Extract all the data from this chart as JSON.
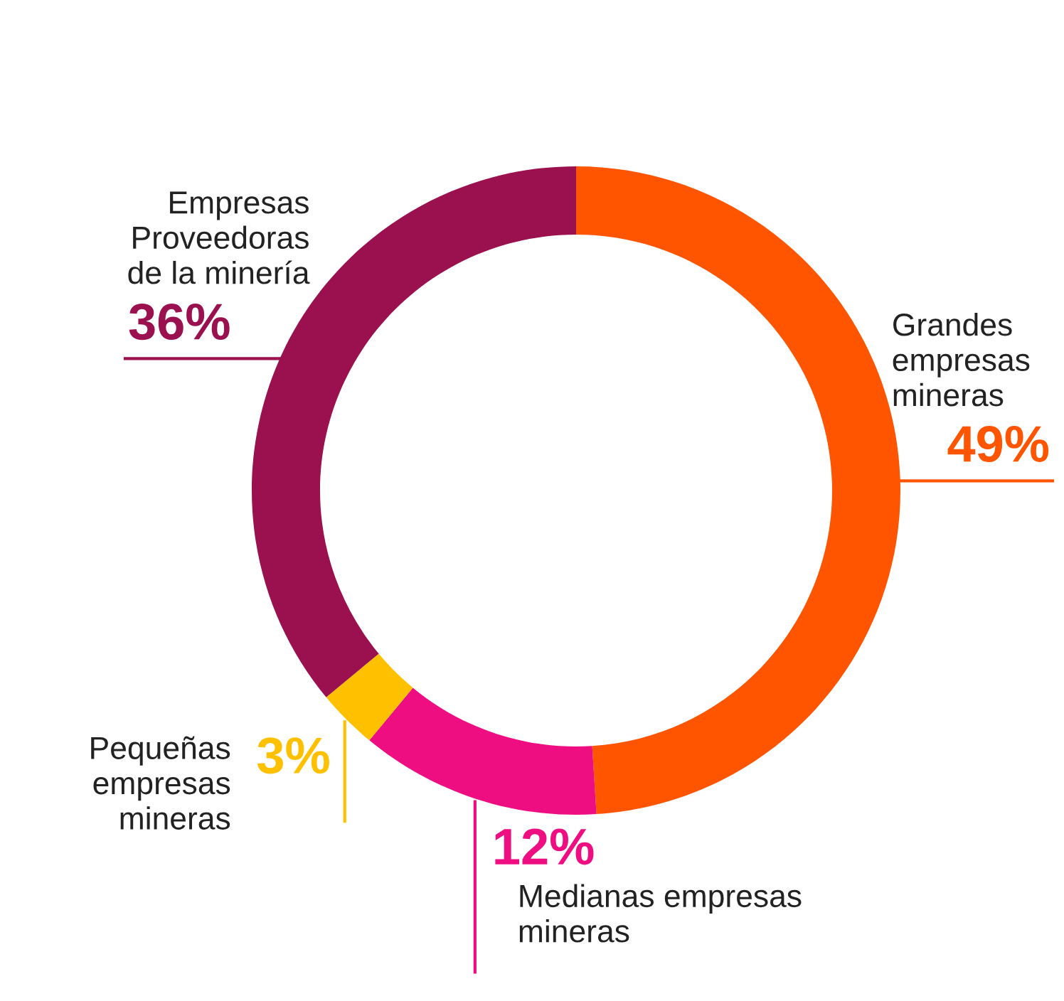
{
  "chart_data": {
    "type": "donut",
    "categories": [
      "Grandes\nempresas\nmineras",
      "Medianas empresas\nmineras",
      "Pequeñas\nempresas\nmineras",
      "Empresas\nProveedoras\nde la minería"
    ],
    "values": [
      49,
      12,
      3,
      36
    ],
    "colors": [
      "#ff5500",
      "#ee0e82",
      "#ffc000",
      "#9b104e"
    ],
    "value_labels": [
      "49%",
      "12%",
      "3%",
      "36%"
    ]
  }
}
